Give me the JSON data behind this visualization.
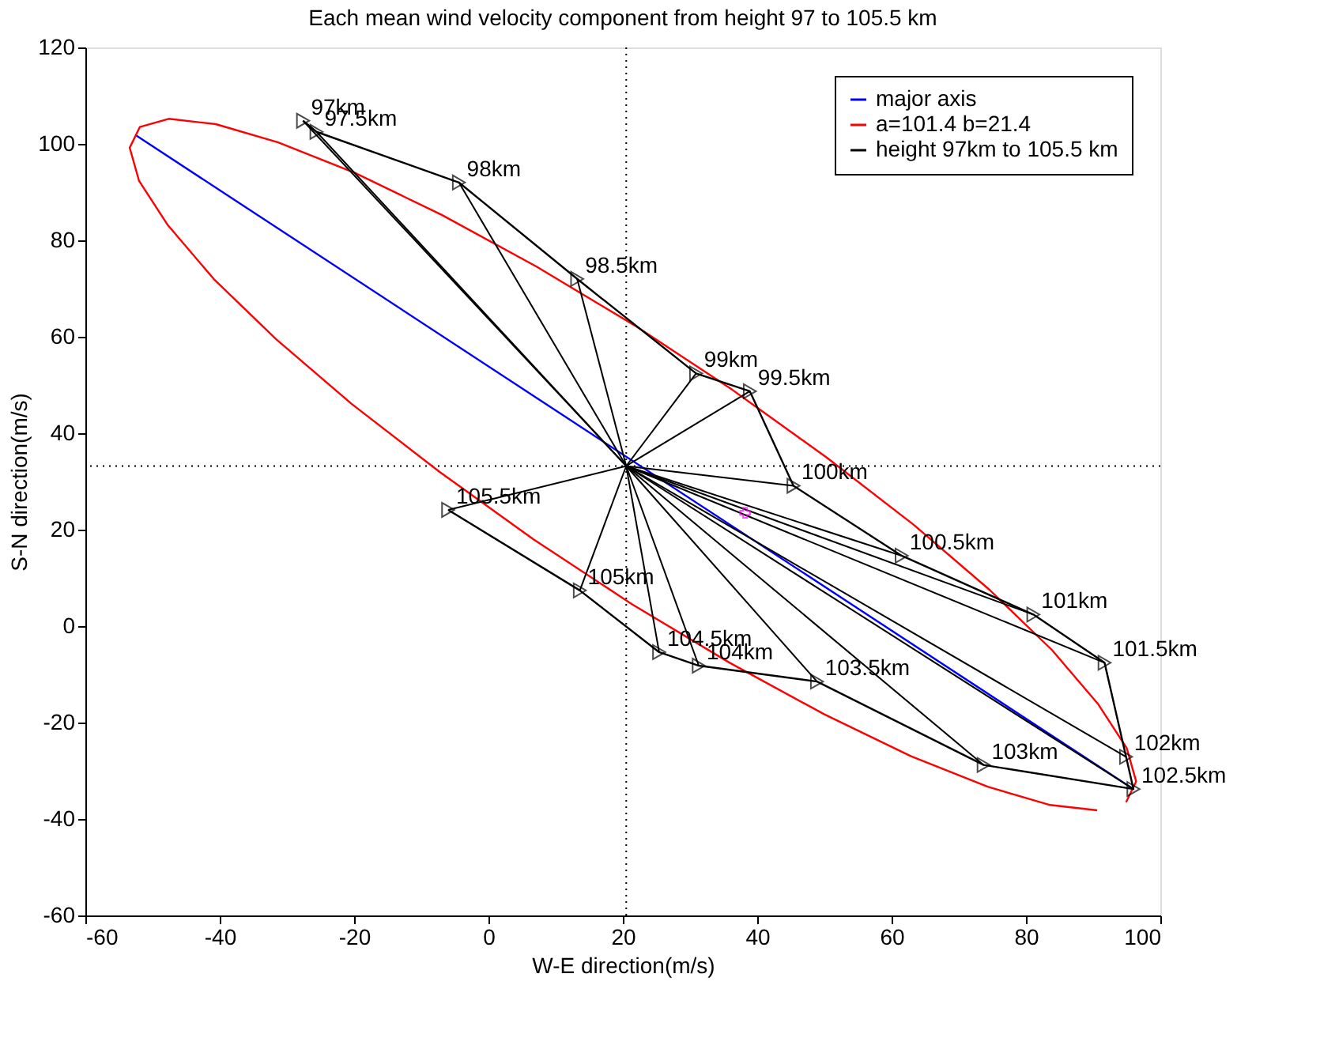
{
  "chart_data": {
    "type": "line",
    "title": "Each mean wind velocity component from height 97 to 105.5 km",
    "xlabel": "W-E direction(m/s)",
    "ylabel": "S-N direction(m/s)",
    "xlim": [
      -60,
      100
    ],
    "ylim": [
      -60,
      120
    ],
    "xticks": [
      -60,
      -40,
      -20,
      0,
      20,
      40,
      60,
      80,
      100
    ],
    "yticks": [
      -60,
      -40,
      -20,
      0,
      20,
      40,
      60,
      80,
      100,
      120
    ],
    "grid": false,
    "legend": "top right",
    "ref_lines": [
      {
        "axis": "x",
        "value": 20.5,
        "line_style": "dotted",
        "color": "#000000"
      },
      {
        "axis": "y",
        "value": 33.2,
        "line_style": "dotted",
        "color": "#000000"
      }
    ],
    "series": [
      {
        "name": "major axis",
        "color": "#0000ff",
        "x": [
          -52.5,
          96.0
        ],
        "values": [
          101.8,
          -33.8
        ]
      },
      {
        "name": "a=101.4 b=21.4",
        "color": "#ff0000",
        "x": [
          94.9,
          96.4,
          95.0,
          90.7,
          83.9,
          74.6,
          63.3,
          50.3,
          36.3,
          21.7,
          7.1,
          -7.0,
          -19.9,
          -31.3,
          -40.6,
          -47.6,
          -51.9,
          -53.4,
          -52.0,
          -47.7,
          -40.9,
          -31.6,
          -20.3,
          -7.3,
          6.7,
          21.3,
          35.9,
          50.0,
          62.9,
          74.3,
          83.6,
          90.6
        ],
        "values": [
          -36.5,
          -32.2,
          -25.3,
          -16.1,
          -5.0,
          7.5,
          21.0,
          35.0,
          49.0,
          62.4,
          74.6,
          85.3,
          94.0,
          100.3,
          104.1,
          105.2,
          103.5,
          99.2,
          92.3,
          83.1,
          72.0,
          59.5,
          46.0,
          32.0,
          18.0,
          4.6,
          -7.6,
          -18.3,
          -27.0,
          -33.3,
          -37.1,
          -38.2
        ]
      },
      {
        "name": "height 97km to 105.5 km",
        "color": "#000000",
        "marker": "triangle",
        "x": [
          -27.6,
          -25.6,
          -4.4,
          13.2,
          30.9,
          38.9,
          45.4,
          61.5,
          81.1,
          91.7,
          94.9,
          96.0,
          73.7,
          48.9,
          31.3,
          25.4,
          13.6,
          -6.0
        ],
        "values": [
          104.8,
          102.5,
          92.0,
          72.0,
          52.4,
          48.7,
          29.1,
          14.6,
          2.4,
          -7.6,
          -27.1,
          -33.8,
          -28.8,
          -11.5,
          -8.2,
          -5.4,
          7.4,
          24.1
        ]
      },
      {
        "color": "#ff00ff",
        "type": "scatter",
        "marker": "cross",
        "x": [
          38.2
        ],
        "values": [
          23.5
        ]
      }
    ],
    "annotations": [
      {
        "text": "97km",
        "x": -27.6,
        "y": 104.8
      },
      {
        "text": "97.5km",
        "x": -25.6,
        "y": 102.5
      },
      {
        "text": "98km",
        "x": -4.4,
        "y": 92.0
      },
      {
        "text": "98.5km",
        "x": 13.2,
        "y": 72.0
      },
      {
        "text": "99km",
        "x": 30.9,
        "y": 52.4
      },
      {
        "text": "99.5km",
        "x": 38.9,
        "y": 48.7
      },
      {
        "text": "100km",
        "x": 45.4,
        "y": 29.1
      },
      {
        "text": "100.5km",
        "x": 61.5,
        "y": 14.6
      },
      {
        "text": "101km",
        "x": 81.1,
        "y": 2.4
      },
      {
        "text": "101.5km",
        "x": 91.7,
        "y": -7.6
      },
      {
        "text": "102km",
        "x": 94.9,
        "y": -27.1
      },
      {
        "text": "102.5km",
        "x": 96.0,
        "y": -33.8
      },
      {
        "text": "103km",
        "x": 73.7,
        "y": -28.8
      },
      {
        "text": "103.5km",
        "x": 48.9,
        "y": -11.5
      },
      {
        "text": "104km",
        "x": 31.3,
        "y": -8.2
      },
      {
        "text": "104.5km",
        "x": 25.4,
        "y": -5.4
      },
      {
        "text": "105km",
        "x": 13.6,
        "y": 7.4
      },
      {
        "text": "105.5km",
        "x": -6.0,
        "y": 24.1
      }
    ]
  }
}
